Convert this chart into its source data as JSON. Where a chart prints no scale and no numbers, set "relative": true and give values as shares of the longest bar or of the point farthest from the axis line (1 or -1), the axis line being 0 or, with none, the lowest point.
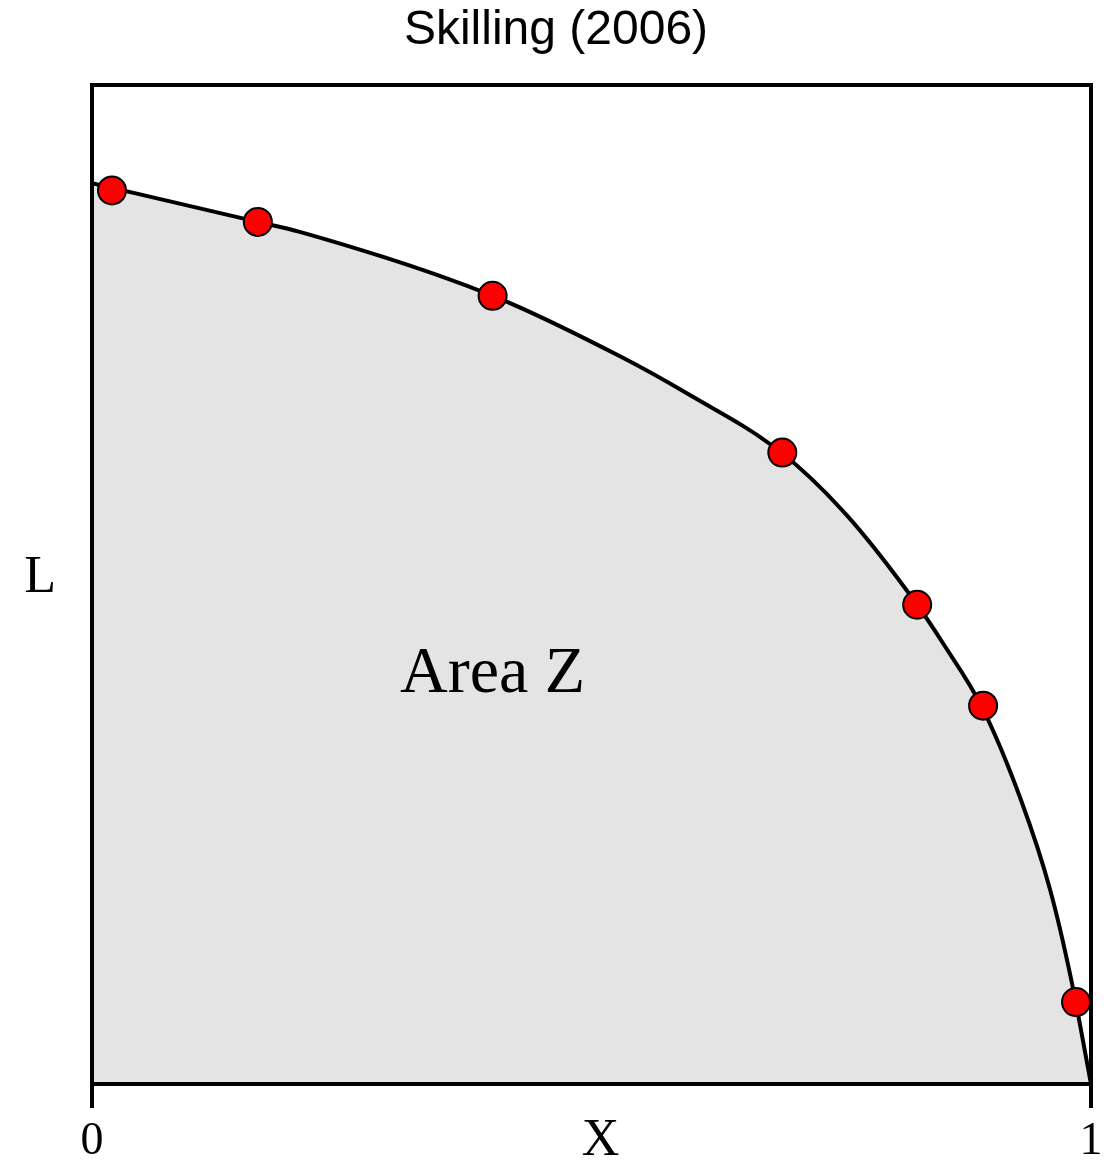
{
  "chart_data": {
    "type": "area",
    "title": "Skilling (2006)",
    "xlabel": "X",
    "ylabel": "L",
    "relative": true,
    "legend": false,
    "xlim": [
      0,
      1
    ],
    "xticks": [
      0,
      1
    ],
    "annotations": [
      "Area Z"
    ],
    "series": [
      {
        "type": "area",
        "color": "#e4e4e4",
        "x": [
          0,
          0.166,
          0.208,
          0.401,
          0.53,
          0.595,
          0.69,
          0.755,
          0.826,
          0.852,
          0.891,
          0.93,
          0.959,
          0.98,
          1
        ],
        "values": [
          1,
          0.957,
          0.946,
          0.875,
          0.807,
          0.767,
          0.701,
          0.632,
          0.532,
          0.489,
          0.418,
          0.315,
          0.216,
          0.117,
          0
        ]
      },
      {
        "type": "scatter",
        "color": "#ff0000",
        "marker": "circle",
        "x": [
          0.02,
          0.166,
          0.401,
          0.691,
          0.826,
          0.892,
          0.985
        ],
        "values": [
          0.992,
          0.957,
          0.875,
          0.701,
          0.532,
          0.42,
          0.091
        ]
      }
    ]
  }
}
